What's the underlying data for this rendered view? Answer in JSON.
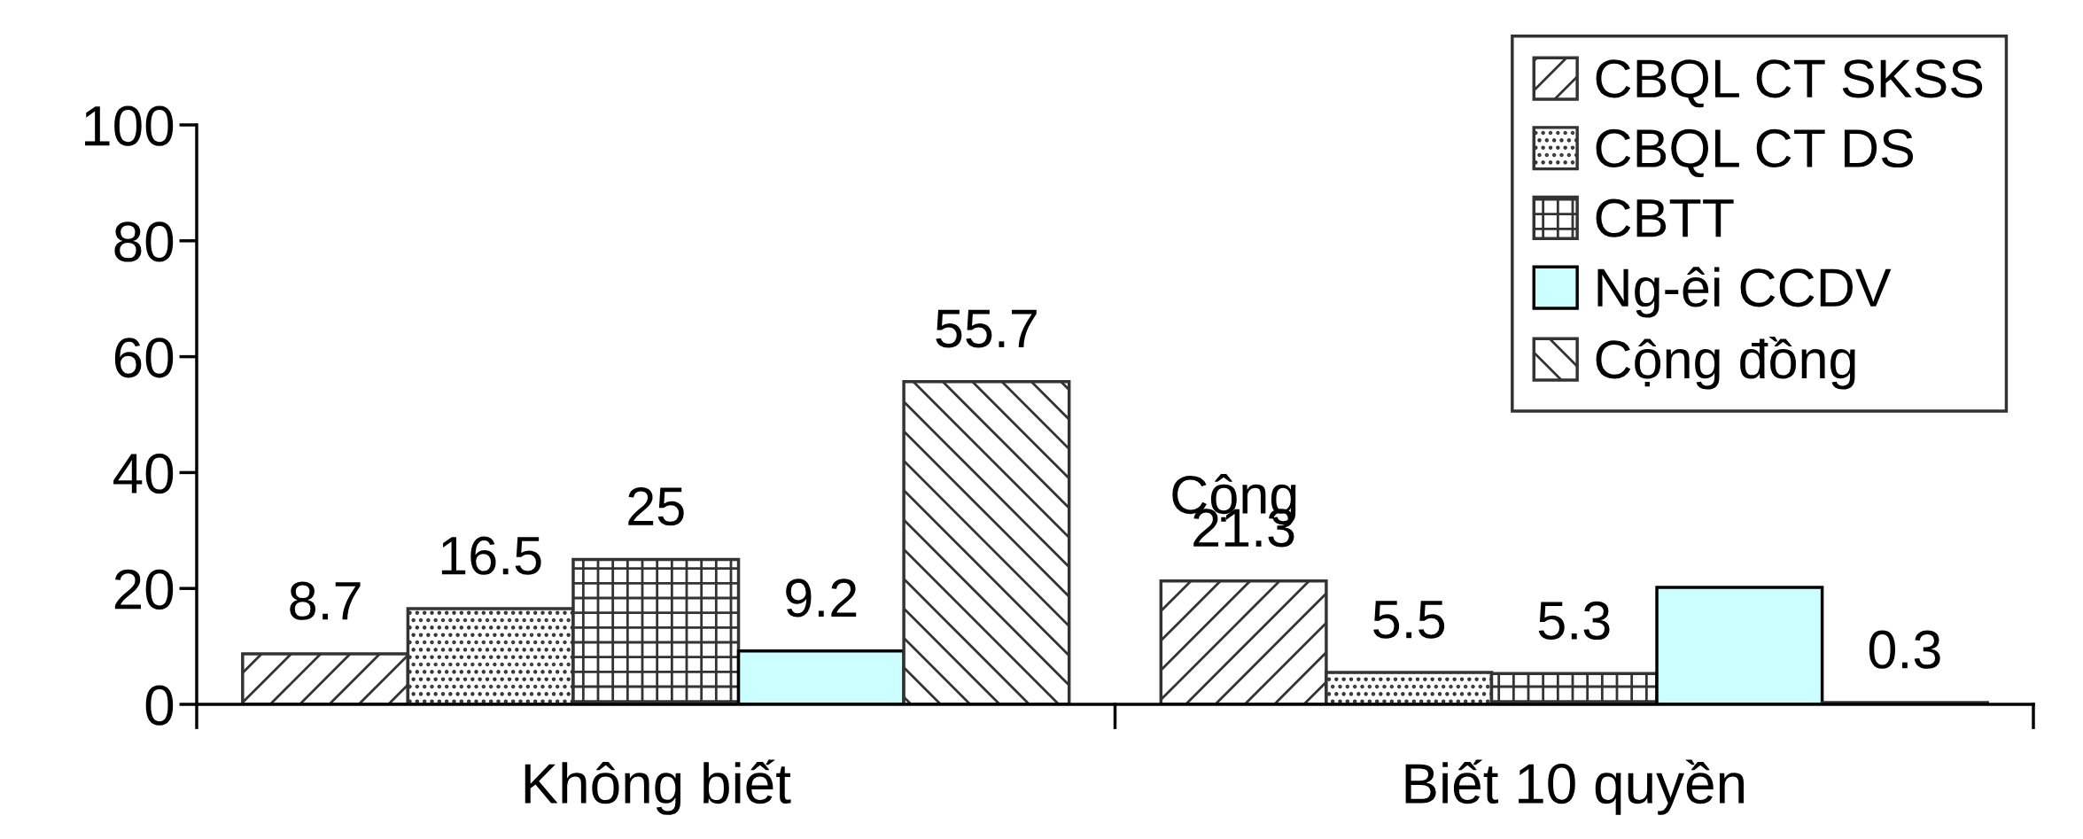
{
  "chart_data": {
    "type": "bar",
    "categories": [
      "Không biết",
      "Biết 10 quyền"
    ],
    "series": [
      {
        "name": "CBQL CT SKSS",
        "color": "#333333",
        "values": [
          8.7,
          21.3
        ],
        "value_labels": [
          "8.7",
          "21.3"
        ]
      },
      {
        "name": "CBQL CT DS",
        "color": "#333333",
        "values": [
          16.5,
          5.5
        ],
        "value_labels": [
          "16.5",
          "5.5"
        ]
      },
      {
        "name": "CBTT",
        "color": "#333333",
        "values": [
          25,
          5.3
        ],
        "value_labels": [
          "25",
          "5.3"
        ]
      },
      {
        "name": "Ng-êi CCDV",
        "color": "#ccffff",
        "values": [
          9.2,
          20.2
        ],
        "value_labels": [
          "9.2",
          null
        ]
      },
      {
        "name": "Cộng đồng",
        "color": "#333333",
        "values": [
          55.7,
          0.3
        ],
        "value_labels": [
          "55.7",
          "0.3"
        ]
      }
    ],
    "annotations": [
      "Cộng"
    ],
    "ylim": [
      0,
      100
    ],
    "yticks": [
      0,
      20,
      40,
      60,
      80,
      100
    ],
    "grid": false,
    "legend": "top right"
  }
}
